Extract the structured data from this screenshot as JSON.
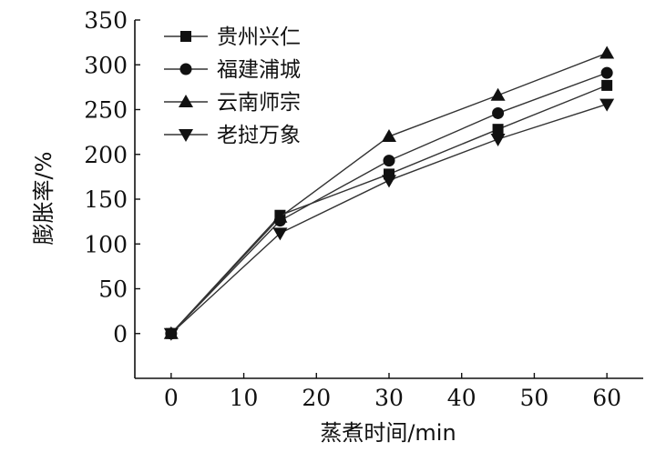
{
  "chart_data": {
    "type": "line",
    "title": "",
    "xlabel": "蒸煮时间/min",
    "ylabel": "膨胀率/%",
    "x": [
      0,
      15,
      30,
      45,
      60
    ],
    "xlim": [
      -5,
      65
    ],
    "ylim": [
      -50,
      350
    ],
    "xticks": [
      0,
      10,
      20,
      30,
      40,
      50,
      60
    ],
    "yticks": [
      0,
      50,
      100,
      150,
      200,
      250,
      300,
      350
    ],
    "grid": false,
    "legend_position": "top-left",
    "series": [
      {
        "name": "贵州兴仁",
        "marker": "square",
        "values": [
          0,
          132,
          178,
          228,
          277
        ]
      },
      {
        "name": "福建浦城",
        "marker": "circle",
        "values": [
          0,
          126,
          193,
          246,
          291
        ]
      },
      {
        "name": "云南师宗",
        "marker": "triangle-up",
        "values": [
          0,
          130,
          220,
          266,
          313
        ]
      },
      {
        "name": "老挝万象",
        "marker": "triangle-down",
        "values": [
          0,
          112,
          171,
          217,
          256
        ]
      }
    ]
  }
}
